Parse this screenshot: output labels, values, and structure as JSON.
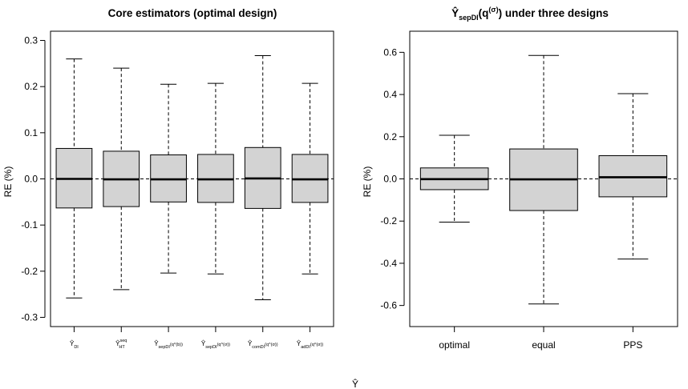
{
  "chart_data": [
    {
      "type": "box",
      "title": "Core estimators (optimal design)",
      "xlabel": "",
      "ylabel": "RE (%)",
      "ylim": [
        -0.32,
        0.32
      ],
      "yticks": [
        -0.3,
        -0.2,
        -0.1,
        0.0,
        0.1,
        0.2,
        0.3
      ],
      "reference_line": 0,
      "categories": [
        {
          "main": "Ŷ",
          "sub": "DI",
          "sup": ""
        },
        {
          "main": "Ŷ",
          "sub": "HT",
          "sup": "seq"
        },
        {
          "main": "Ŷ",
          "sub": "sepDI",
          "sup": "",
          "tail": "(q^(b))"
        },
        {
          "main": "Ŷ",
          "sub": "sepDI",
          "sup": "",
          "tail": "(q^(σ))"
        },
        {
          "main": "Ŷ",
          "sub": "comDI",
          "sup": "",
          "tail": "(q^(σ))"
        },
        {
          "main": "Ŷ",
          "sub": "adDI",
          "sup": "",
          "tail": "(q^(σ))"
        }
      ],
      "boxes": [
        {
          "min": -0.258,
          "q1": -0.063,
          "median": 0.0,
          "q3": 0.066,
          "max": 0.26
        },
        {
          "min": -0.24,
          "q1": -0.06,
          "median": -0.001,
          "q3": 0.06,
          "max": 0.24
        },
        {
          "min": -0.204,
          "q1": -0.05,
          "median": -0.001,
          "q3": 0.052,
          "max": 0.205
        },
        {
          "min": -0.206,
          "q1": -0.051,
          "median": -0.001,
          "q3": 0.053,
          "max": 0.207
        },
        {
          "min": -0.262,
          "q1": -0.064,
          "median": 0.001,
          "q3": 0.068,
          "max": 0.267
        },
        {
          "min": -0.206,
          "q1": -0.051,
          "median": -0.001,
          "q3": 0.053,
          "max": 0.207
        }
      ]
    },
    {
      "type": "box",
      "title": "Ŷ_sepDI(q^(σ)) under three designs",
      "title_parts": {
        "main": "Ŷ",
        "sub": "sepDI",
        "tail1": "(q",
        "sup": "(σ)",
        "tail2": ") under three designs"
      },
      "xlabel": "",
      "ylabel": "RE (%)",
      "ylim": [
        -0.7,
        0.7
      ],
      "yticks": [
        -0.6,
        -0.4,
        -0.2,
        0.0,
        0.2,
        0.4,
        0.6
      ],
      "reference_line": 0,
      "categories": [
        "optimal",
        "equal",
        "PPS"
      ],
      "boxes": [
        {
          "min": -0.205,
          "q1": -0.051,
          "median": -0.001,
          "q3": 0.052,
          "max": 0.207
        },
        {
          "min": -0.593,
          "q1": -0.15,
          "median": -0.002,
          "q3": 0.142,
          "max": 0.585
        },
        {
          "min": -0.38,
          "q1": -0.085,
          "median": 0.008,
          "q3": 0.11,
          "max": 0.404
        }
      ]
    }
  ],
  "figure": {
    "caption_hint": "Ŷ"
  },
  "colors": {
    "box_fill": "#d3d3d3",
    "stroke": "#000000",
    "background": "#ffffff"
  }
}
